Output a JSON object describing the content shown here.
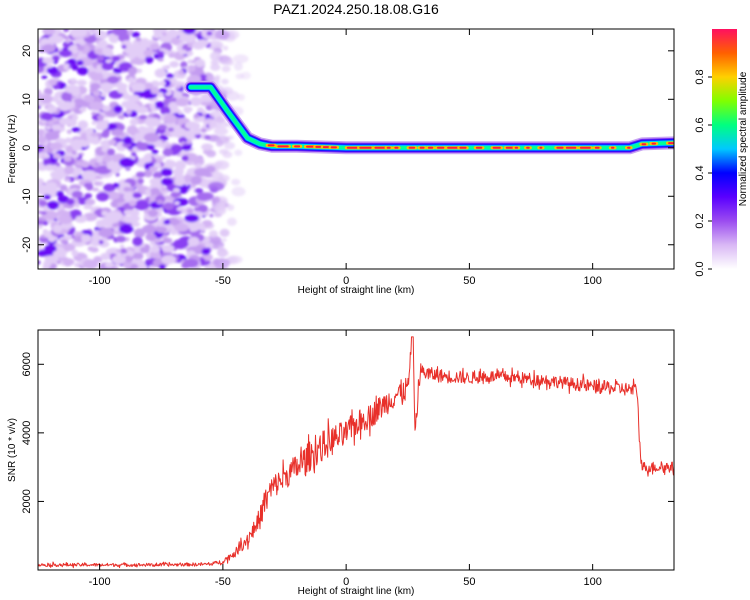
{
  "title": "PAZ1.2024.250.18.08.G16",
  "chart_data": [
    {
      "type": "heatmap",
      "xlabel": "Height of straight line (km)",
      "ylabel": "Frequency (Hz)",
      "xlim": [
        -125,
        133
      ],
      "ylim": [
        -25,
        24.5
      ],
      "x_ticks": [
        -100,
        -50,
        0,
        50,
        100
      ],
      "y_ticks": [
        -20,
        -10,
        0,
        10,
        20
      ],
      "x_tick_labels": [
        "-100",
        "-50",
        "0",
        "50",
        "100"
      ],
      "y_tick_labels": [
        "-20",
        "-10",
        "0",
        "10",
        "20"
      ],
      "colorbar": {
        "label": "Normalized spectral amplitude",
        "range": [
          0,
          1
        ],
        "ticks": [
          0.0,
          0.2,
          0.4,
          0.6,
          0.8
        ],
        "tick_labels": [
          "0.0",
          "0.2",
          "0.4",
          "0.6",
          "0.8"
        ],
        "colors": [
          "#ffffff",
          "#d9b8f5",
          "#9b4cf0",
          "#5a00ff",
          "#0000ff",
          "#00c8ff",
          "#00ff80",
          "#80ff00",
          "#ffd000",
          "#ff6000",
          "#ff1060"
        ]
      },
      "noise_region_x": [
        -125,
        -45
      ],
      "ridge": [
        [
          -63,
          12.5
        ],
        [
          -55,
          12.5
        ],
        [
          -48,
          7.5
        ],
        [
          -40,
          2.0
        ],
        [
          -35,
          0.8
        ],
        [
          -30,
          0.3
        ],
        [
          -20,
          0.3
        ],
        [
          0,
          0.0
        ],
        [
          50,
          0.0
        ],
        [
          100,
          0.0
        ],
        [
          115,
          0.0
        ],
        [
          120,
          0.8
        ],
        [
          133,
          1.0
        ]
      ]
    },
    {
      "type": "line",
      "xlabel": "Height of straight line (km)",
      "ylabel": "SNR (10 * v/v)",
      "xlim": [
        -125,
        133
      ],
      "ylim": [
        0,
        7000
      ],
      "x_ticks": [
        -100,
        -50,
        0,
        50,
        100
      ],
      "y_ticks": [
        2000,
        4000,
        6000
      ],
      "x_tick_labels": [
        "-100",
        "-50",
        "0",
        "50",
        "100"
      ],
      "y_tick_labels": [
        "2000",
        "4000",
        "6000"
      ],
      "color": "#e8302a",
      "series": [
        {
          "x": [
            -125,
            -100,
            -75,
            -55,
            -50,
            -45,
            -40,
            -35,
            -33,
            -30,
            -25,
            -20,
            -15,
            -10,
            -5,
            0,
            5,
            10,
            15,
            20,
            25,
            27,
            28,
            30,
            35,
            40,
            50,
            60,
            70,
            80,
            90,
            100,
            110,
            118,
            119,
            120,
            125,
            133
          ],
          "y": [
            150,
            150,
            150,
            170,
            250,
            500,
            900,
            1500,
            2000,
            2400,
            2700,
            3000,
            3300,
            3600,
            3800,
            4000,
            4300,
            4500,
            4800,
            5100,
            5300,
            6800,
            4000,
            5800,
            5700,
            5650,
            5600,
            5650,
            5600,
            5550,
            5450,
            5350,
            5300,
            5250,
            3800,
            3000,
            3000,
            3000
          ],
          "noise_amplitude": [
            60,
            60,
            60,
            60,
            80,
            150,
            250,
            400,
            500,
            450,
            450,
            500,
            550,
            550,
            550,
            450,
            450,
            450,
            450,
            450,
            450,
            300,
            300,
            300,
            250,
            250,
            220,
            220,
            220,
            220,
            220,
            250,
            250,
            250,
            300,
            200,
            200,
            200
          ]
        }
      ]
    }
  ]
}
